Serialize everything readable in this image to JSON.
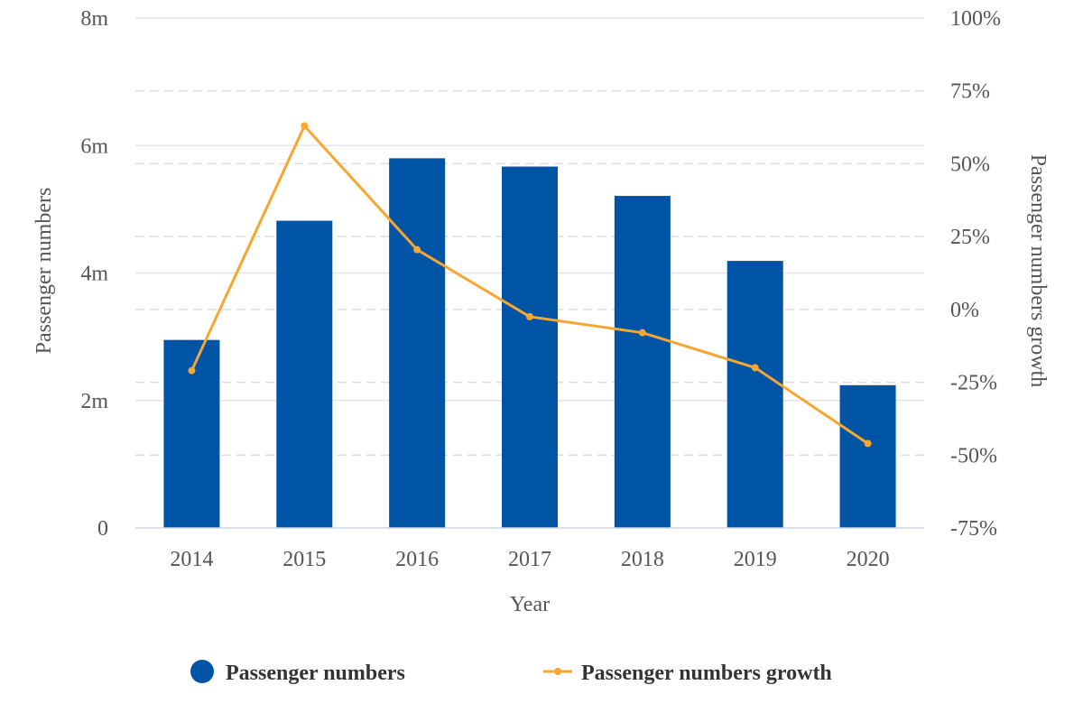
{
  "chart_data": {
    "type": "bar+line",
    "categories": [
      "2014",
      "2015",
      "2016",
      "2017",
      "2018",
      "2019",
      "2020"
    ],
    "series": [
      {
        "name": "Passenger numbers",
        "type": "bar",
        "axis": "left",
        "values": [
          2950000,
          4820000,
          5800000,
          5670000,
          5210000,
          4190000,
          2240000
        ],
        "color": "#0054a6"
      },
      {
        "name": "Passenger numbers growth",
        "type": "line",
        "axis": "right",
        "values": [
          -21,
          63,
          20.5,
          -2.5,
          -8,
          -20,
          -46
        ],
        "color": "#f7a631"
      }
    ],
    "xlabel": "Year",
    "ylabel_left": "Passenger numbers",
    "ylabel_right": "Passenger numbers growth",
    "ylim_left": [
      0,
      8000000
    ],
    "yticks_left": [
      "0",
      "2m",
      "4m",
      "6m",
      "8m"
    ],
    "ylim_right": [
      -75,
      100
    ],
    "yticks_right": [
      "-75%",
      "-50%",
      "-25%",
      "0%",
      "25%",
      "50%",
      "75%",
      "100%"
    ],
    "grid": true,
    "legend": "bottom"
  }
}
